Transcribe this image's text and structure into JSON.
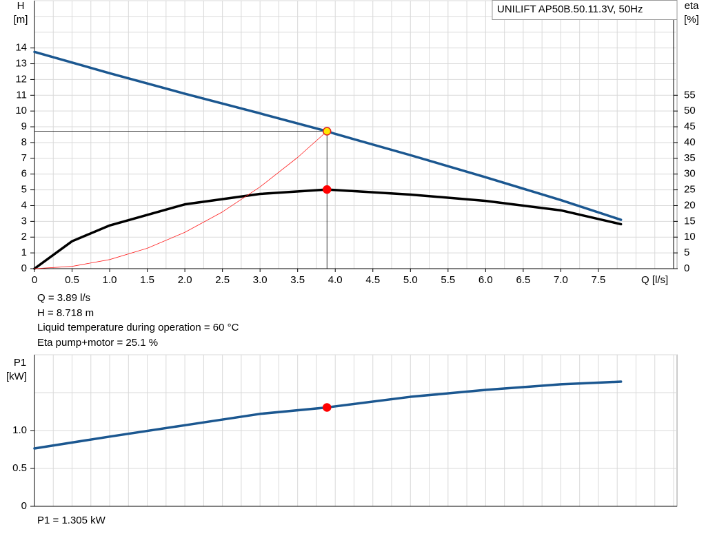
{
  "chart_data": [
    {
      "type": "line",
      "title": "UNILIFT AP50B.50.11.3V, 50Hz",
      "ylabel": "H",
      "yunit": "[m]",
      "y2label": "eta",
      "y2unit": "[%]",
      "xlabel": "Q [l/s]",
      "xlim": [
        0,
        8.5
      ],
      "xticks": [
        0,
        0.5,
        {
          "value": 1,
          "label": "1.0"
        },
        1.5,
        {
          "value": 2,
          "label": "2.0"
        },
        2.5,
        {
          "value": 3,
          "label": "3.0"
        },
        3.5,
        {
          "value": 4,
          "label": "4.0"
        },
        4.5,
        {
          "value": 5,
          "label": "5.0"
        },
        5.5,
        {
          "value": 6,
          "label": "6.0"
        },
        6.5,
        {
          "value": 7,
          "label": "7.0"
        },
        7.5
      ],
      "xgrid": [
        0,
        0.25,
        0.5,
        0.75,
        1,
        1.25,
        1.5,
        1.75,
        2,
        2.25,
        2.5,
        2.75,
        3,
        3.25,
        3.5,
        3.75,
        4,
        4.25,
        4.5,
        4.75,
        5,
        5.25,
        5.5,
        5.75,
        6,
        6.25,
        6.5,
        6.75,
        7,
        7.25,
        7.5,
        7.75,
        8,
        8.25,
        8.5
      ],
      "ylim": [
        0,
        17
      ],
      "yticks": [
        0,
        1,
        2,
        3,
        4,
        5,
        6,
        7,
        8,
        9,
        10,
        11,
        12,
        13,
        14
      ],
      "ygrid": [
        0,
        1,
        2,
        3,
        4,
        5,
        6,
        7,
        8,
        9,
        10,
        11,
        12,
        13,
        14,
        15,
        16,
        17
      ],
      "y2lim": [
        0,
        85
      ],
      "y2ticks": [
        0,
        5,
        10,
        15,
        20,
        25,
        30,
        35,
        40,
        45,
        50,
        55
      ],
      "series": [
        {
          "color": "#1b5790",
          "width": 3.5,
          "x": [
            0,
            1,
            2,
            3,
            3.89,
            4,
            5,
            6,
            7,
            7.8
          ],
          "values": [
            13.75,
            12.4,
            11.1,
            9.85,
            8.718,
            8.55,
            7.2,
            5.8,
            4.35,
            3.1
          ]
        },
        {
          "color": "#000000",
          "width": 3.5,
          "axis": "y2",
          "x": [
            0,
            0.5,
            1,
            2,
            3,
            3.89,
            5,
            6,
            7,
            7.8
          ],
          "values": [
            0,
            8.7,
            13.7,
            20.4,
            23.7,
            25.1,
            23.5,
            21.5,
            18.5,
            14.1
          ]
        },
        {
          "color": "#ff2020",
          "width": 0.8,
          "x": [
            0,
            0.5,
            1,
            1.5,
            2,
            2.5,
            3,
            3.5,
            3.89
          ],
          "values": [
            0,
            0.144,
            0.576,
            1.296,
            2.305,
            3.601,
            5.186,
            7.058,
            8.718
          ]
        }
      ],
      "markers": [
        {
          "x": 3.89,
          "y": 8.718,
          "fill": "#ffe800",
          "stroke": "#e02020",
          "guide": true
        },
        {
          "x": 3.89,
          "y": 25.1,
          "axis": "y2",
          "fill": "#ff0000",
          "stroke": "#ff0000"
        }
      ],
      "annotations": [
        "Q = 3.89 l/s",
        "H = 8.718 m",
        "Liquid temperature during operation = 60 °C",
        "Eta pump+motor = 25.1 %"
      ]
    },
    {
      "type": "line",
      "ylabel": "P1",
      "yunit": "[kW]",
      "xlim": [
        0,
        8.5
      ],
      "xgrid": [
        0,
        0.25,
        0.5,
        0.75,
        1,
        1.25,
        1.5,
        1.75,
        2,
        2.25,
        2.5,
        2.75,
        3,
        3.25,
        3.5,
        3.75,
        4,
        4.25,
        4.5,
        4.75,
        5,
        5.25,
        5.5,
        5.75,
        6,
        6.25,
        6.5,
        6.75,
        7,
        7.25,
        7.5,
        7.75,
        8,
        8.25,
        8.5
      ],
      "ylim": [
        0,
        2
      ],
      "yticks": [
        0,
        0.5,
        {
          "value": 1,
          "label": "1.0"
        }
      ],
      "ygrid": [
        0,
        0.5,
        1,
        1.5,
        2
      ],
      "series": [
        {
          "color": "#1b5790",
          "width": 3.5,
          "x": [
            0,
            1,
            2,
            3,
            3.89,
            5,
            6,
            7,
            7.8
          ],
          "values": [
            0.764,
            0.92,
            1.07,
            1.22,
            1.305,
            1.445,
            1.536,
            1.61,
            1.645
          ]
        }
      ],
      "markers": [
        {
          "x": 3.89,
          "y": 1.305,
          "fill": "#ff0000",
          "stroke": "#ff0000"
        }
      ],
      "annotations": [
        "P1 = 1.305 kW"
      ]
    }
  ]
}
